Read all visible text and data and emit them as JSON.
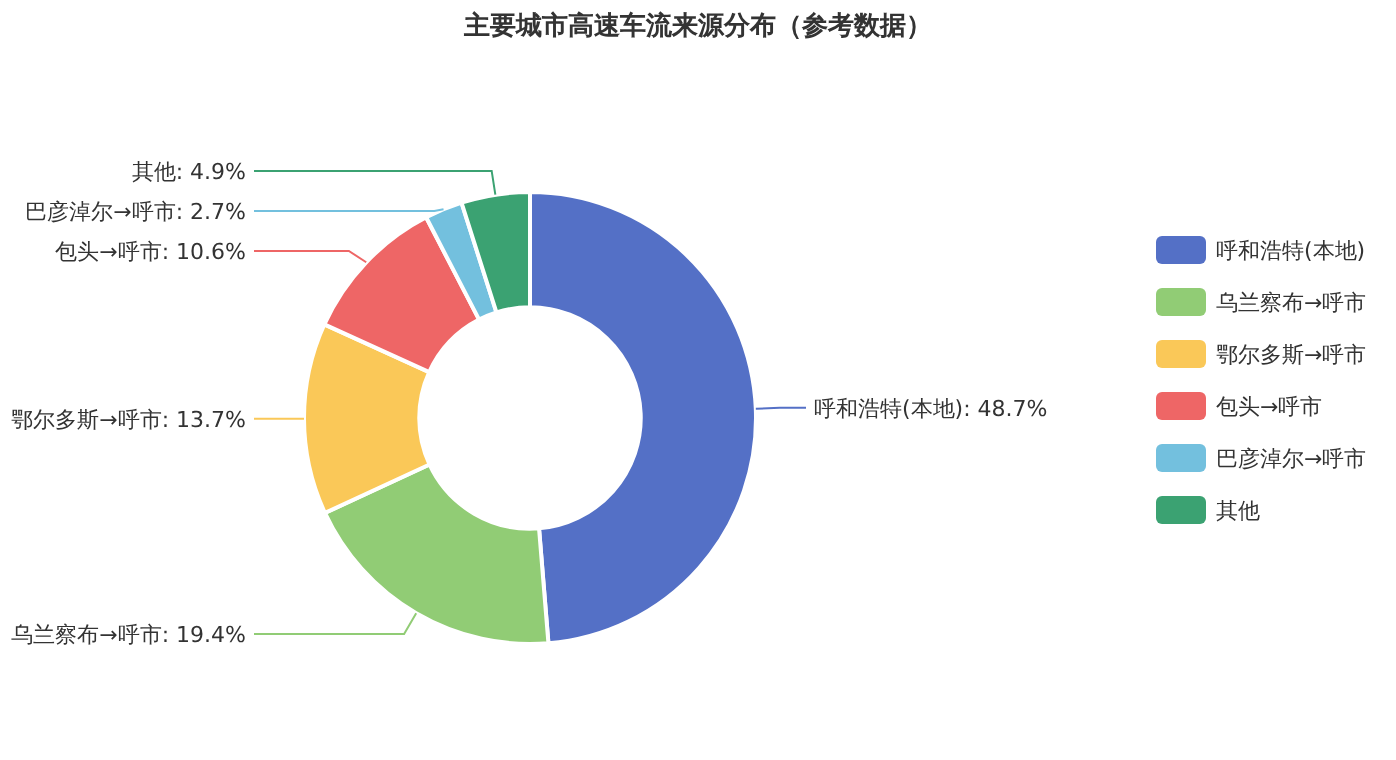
{
  "chart_data": {
    "type": "donut",
    "title": "主要城市高速车流来源分布（参考数据）",
    "categories": [
      "呼和浩特(本地)",
      "乌兰察布→呼市",
      "鄂尔多斯→呼市",
      "包头→呼市",
      "巴彦淖尔→呼市",
      "其他"
    ],
    "values": [
      48.7,
      19.4,
      13.7,
      10.6,
      2.7,
      4.9
    ],
    "value_labels": [
      "呼和浩特(本地): 48.7%",
      "乌兰察布→呼市: 19.4%",
      "鄂尔多斯→呼市: 13.7%",
      "包头→呼市: 10.6%",
      "巴彦淖尔→呼市: 2.7%",
      "其他: 4.9%"
    ],
    "colors": [
      "#5470c6",
      "#91cc75",
      "#fac858",
      "#ee6666",
      "#73c0de",
      "#3ba272"
    ],
    "legend": "right"
  }
}
